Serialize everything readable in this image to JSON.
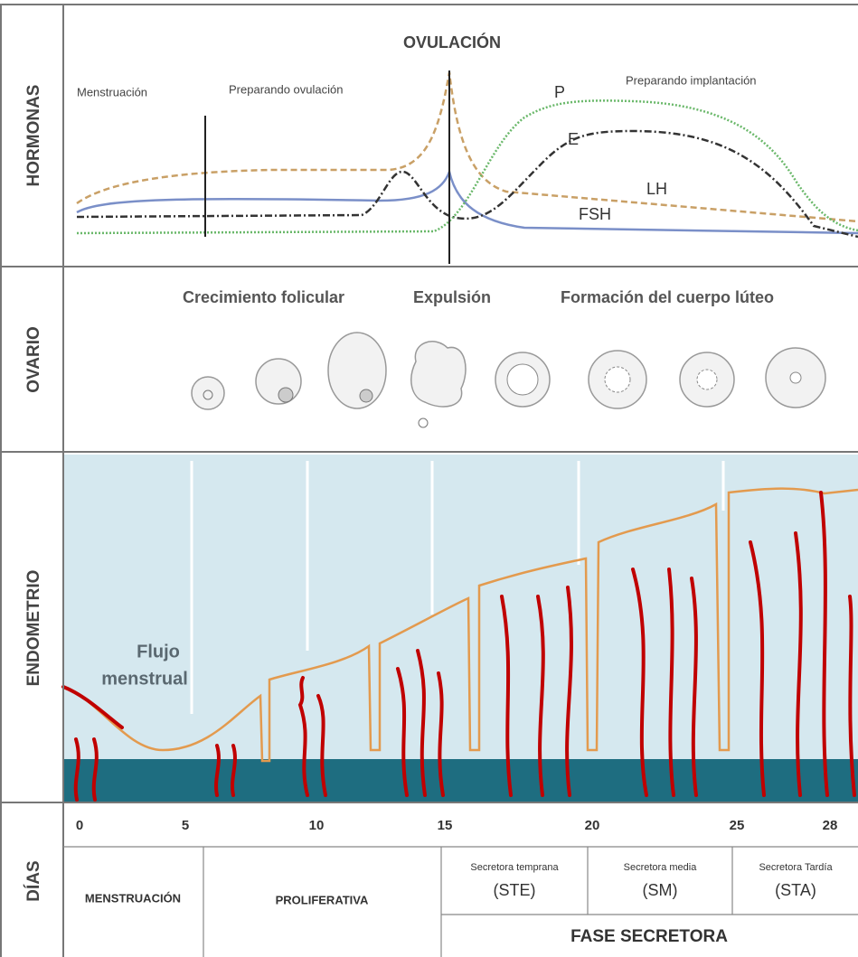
{
  "sections": {
    "hormonas": "HORMONAS",
    "ovario": "OVARIO",
    "endometrio": "ENDOMETRIO",
    "dias": "DÍAS"
  },
  "hormones": {
    "title": "OVULACIÓN",
    "phases": [
      "Menstruación",
      "Preparando ovulación",
      "Preparando implantación"
    ],
    "curves": [
      "P",
      "E",
      "LH",
      "FSH"
    ]
  },
  "ovary": {
    "labels": [
      "Crecimiento folicular",
      "Expulsión",
      "Formación del cuerpo lúteo"
    ]
  },
  "endometrium": {
    "label": [
      "Flujo",
      "menstrual"
    ]
  },
  "days": {
    "ticks": [
      0,
      5,
      10,
      15,
      20,
      25,
      28
    ],
    "phases": [
      {
        "name": "MENSTRUACIÓN"
      },
      {
        "name": "PROLIFERATIVA"
      },
      {
        "name": "Secretora temprana",
        "abbr": "(STE)"
      },
      {
        "name": "Secretora media",
        "abbr": "(SM)"
      },
      {
        "name": "Secretora Tardía",
        "abbr": "(STA)"
      }
    ],
    "group": "FASE SECRETORA"
  }
}
